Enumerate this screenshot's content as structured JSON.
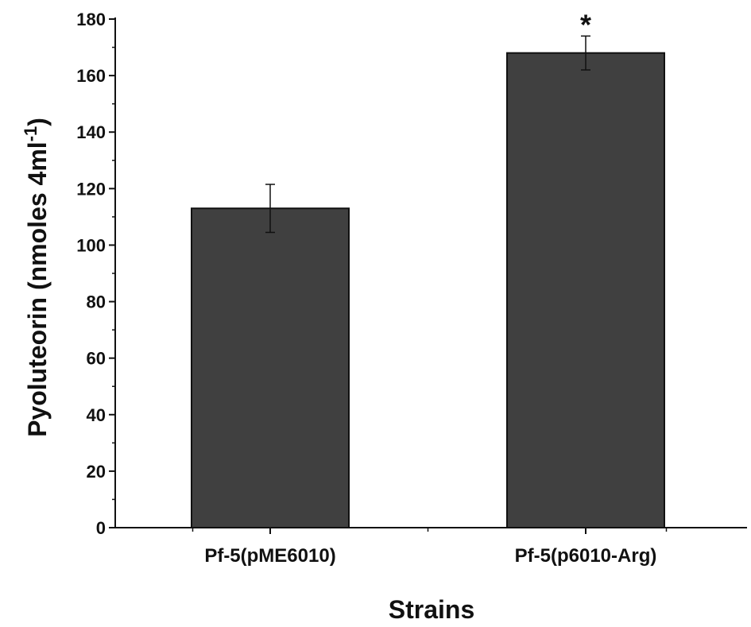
{
  "chart_data": {
    "type": "bar",
    "categories": [
      "Pf-5(pME6010)",
      "Pf-5(p6010-Arg)"
    ],
    "values": [
      113,
      168
    ],
    "errors": [
      8.5,
      6
    ],
    "annotations": [
      "",
      "*"
    ],
    "title": "",
    "xlabel": "Strains",
    "ylabel": "Pyoluteorin (nmoles 4ml",
    "ylabel_superscript": "-1",
    "ylabel_close": ")",
    "ylim": [
      0,
      180
    ],
    "yticks": [
      0,
      20,
      40,
      60,
      80,
      100,
      120,
      140,
      160,
      180
    ],
    "bar_color": "#404040",
    "grid": false,
    "legend": "none"
  }
}
